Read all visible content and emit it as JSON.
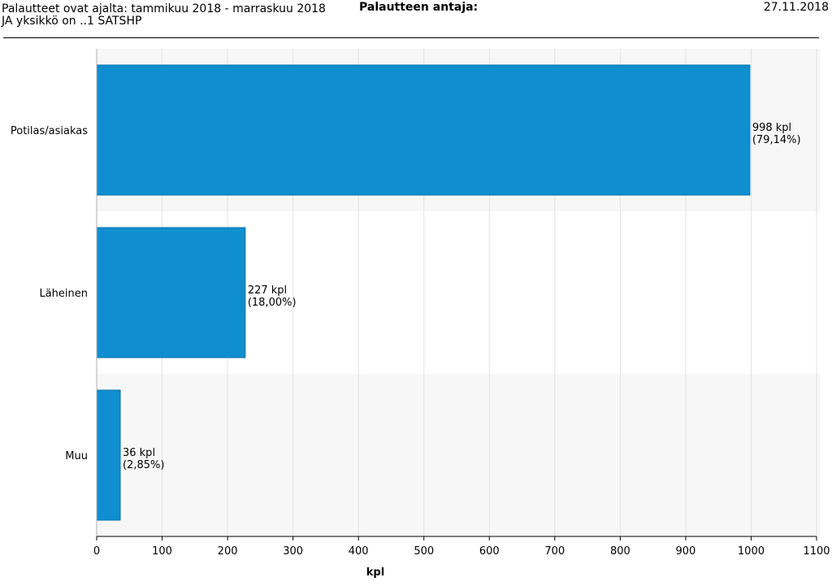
{
  "header": {
    "period_line": "Palautteet ovat ajalta: tammikuu 2018 - marraskuu 2018",
    "unit_line": "JA yksikkö on ..1 SATSHP",
    "center_title": "Palautteen antaja:",
    "date": "27.11.2018"
  },
  "colors": {
    "bar": "#0f8fd0",
    "bar_stroke": "#0a6fa6",
    "band": "#f7f7f7",
    "grid": "#e2e2e2",
    "axis": "#000000"
  },
  "chart_data": {
    "type": "bar",
    "orientation": "horizontal",
    "categories": [
      "Potilas/asiakas",
      "Läheinen",
      "Muu"
    ],
    "values": [
      998,
      227,
      36
    ],
    "data_labels": [
      [
        "998 kpl",
        "(79,14%)"
      ],
      [
        "227 kpl",
        "(18,00%)"
      ],
      [
        "36 kpl",
        "(2,85%)"
      ]
    ],
    "xlabel": "kpl",
    "ylabel": "",
    "xlim": [
      0,
      1100
    ],
    "xticks": [
      0,
      100,
      200,
      300,
      400,
      500,
      600,
      700,
      800,
      900,
      1000,
      1100
    ],
    "grid": true
  }
}
